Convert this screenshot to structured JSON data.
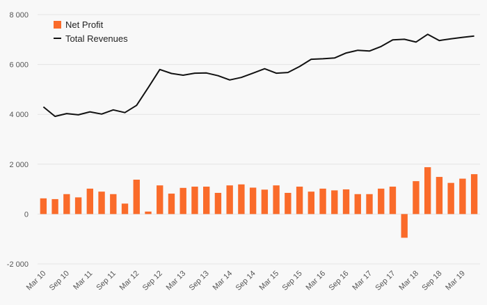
{
  "colors": {
    "background": "#f8f8f8",
    "bar": "#fa6b2a",
    "line": "#111111",
    "grid": "#e3e3e3",
    "axis_text": "#555555"
  },
  "chart_data": {
    "type": "bar-line-combo",
    "legend_position": "top-left",
    "grid": true,
    "ylim": [
      -2000,
      8000
    ],
    "y_ticks": [
      {
        "value": 8000,
        "label": "8 000"
      },
      {
        "value": 6000,
        "label": "6 000"
      },
      {
        "value": 4000,
        "label": "4 000"
      },
      {
        "value": 2000,
        "label": "2 000"
      },
      {
        "value": 0,
        "label": "0"
      },
      {
        "value": -2000,
        "label": "-2 000"
      }
    ],
    "x": [
      "Mar 10",
      "Jun 10",
      "Sep 10",
      "Dec 10",
      "Mar 11",
      "Jun 11",
      "Sep 11",
      "Dec 11",
      "Mar 12",
      "Jun 12",
      "Sep 12",
      "Dec 12",
      "Mar 13",
      "Jun 13",
      "Sep 13",
      "Dec 13",
      "Mar 14",
      "Jun 14",
      "Sep 14",
      "Dec 14",
      "Mar 15",
      "Jun 15",
      "Sep 15",
      "Dec 15",
      "Mar 16",
      "Jun 16",
      "Sep 16",
      "Dec 16",
      "Mar 17",
      "Jun 17",
      "Sep 17",
      "Dec 17",
      "Mar 18",
      "Jun 18",
      "Sep 18",
      "Dec 18",
      "Mar 19",
      "Jun 19"
    ],
    "x_tick_labels": [
      "Mar 10",
      "Sep 10",
      "Mar 11",
      "Sep 11",
      "Mar 12",
      "Sep 12",
      "Mar 13",
      "Sep 13",
      "Mar 14",
      "Sep 14",
      "Mar 15",
      "Sep 15",
      "Mar 16",
      "Sep 16",
      "Mar 17",
      "Sep 17",
      "Mar 18",
      "Sep 18",
      "Mar 19"
    ],
    "series": [
      {
        "name": "Net Profit",
        "kind": "bar",
        "values": [
          630,
          600,
          800,
          670,
          1020,
          900,
          800,
          420,
          1380,
          100,
          1150,
          820,
          1050,
          1100,
          1100,
          850,
          1150,
          1190,
          1060,
          980,
          1150,
          850,
          1100,
          900,
          1020,
          950,
          990,
          800,
          800,
          1020,
          1100,
          -950,
          1320,
          1880,
          1490,
          1250,
          1420,
          1600
        ]
      },
      {
        "name": "Total Revenues",
        "kind": "line",
        "values": [
          4300,
          3920,
          4030,
          3980,
          4100,
          4010,
          4180,
          4070,
          4360,
          5070,
          5800,
          5640,
          5570,
          5650,
          5660,
          5550,
          5380,
          5480,
          5650,
          5830,
          5650,
          5680,
          5920,
          6210,
          6230,
          6260,
          6460,
          6570,
          6540,
          6720,
          6990,
          7010,
          6900,
          7210,
          6960,
          7030,
          7090,
          7140
        ]
      }
    ]
  }
}
